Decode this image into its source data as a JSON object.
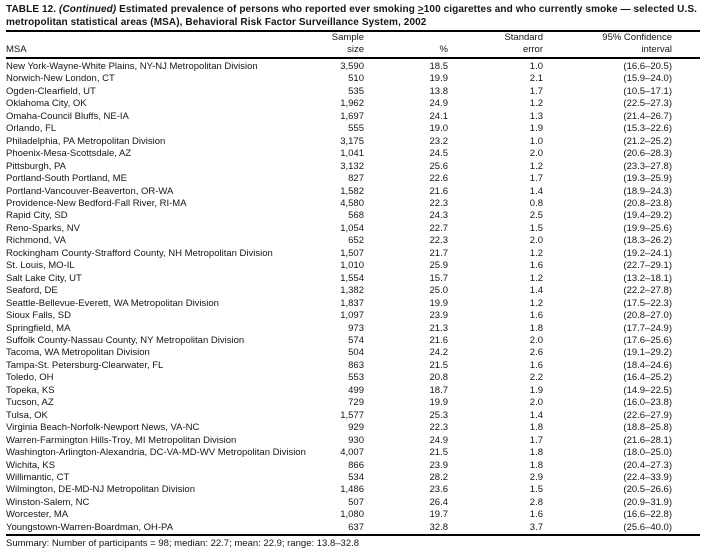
{
  "table": {
    "title": {
      "label": "TABLE 12. ",
      "continued": "(Continued) ",
      "before_geq": "Estimated prevalence of persons who reported ever smoking ",
      "geq": ">",
      "after_geq": "100 cigarettes and who currently smoke — selected U.S. metropolitan statistical areas (MSA), Behavioral Risk Factor Surveillance System, 2002"
    },
    "columns": {
      "msa": "MSA",
      "sample_line1": "Sample",
      "sample_line2": "size",
      "percent": "%",
      "stderr_line1": "Standard",
      "stderr_line2": "error",
      "ci_line1": "95% Confidence",
      "ci_line2": "interval"
    },
    "rows": [
      {
        "msa": "New York-Wayne-White Plains, NY-NJ Metropolitan Division",
        "sample": "3,590",
        "pct": "18.5",
        "se": "1.0",
        "ci": "(16.6–20.5)"
      },
      {
        "msa": "Norwich-New London, CT",
        "sample": "510",
        "pct": "19.9",
        "se": "2.1",
        "ci": "(15.9–24.0)"
      },
      {
        "msa": "Ogden-Clearfield, UT",
        "sample": "535",
        "pct": "13.8",
        "se": "1.7",
        "ci": "(10.5–17.1)"
      },
      {
        "msa": "Oklahoma City, OK",
        "sample": "1,962",
        "pct": "24.9",
        "se": "1.2",
        "ci": "(22.5–27.3)"
      },
      {
        "msa": "Omaha-Council Bluffs, NE-IA",
        "sample": "1,697",
        "pct": "24.1",
        "se": "1.3",
        "ci": "(21.4–26.7)"
      },
      {
        "msa": "Orlando, FL",
        "sample": "555",
        "pct": "19.0",
        "se": "1.9",
        "ci": "(15.3–22.6)"
      },
      {
        "msa": "Philadelphia, PA Metropolitan Division",
        "sample": "3,175",
        "pct": "23.2",
        "se": "1.0",
        "ci": "(21.2–25.2)"
      },
      {
        "msa": "Phoenix-Mesa-Scottsdale, AZ",
        "sample": "1,041",
        "pct": "24.5",
        "se": "2.0",
        "ci": "(20.6–28.3)"
      },
      {
        "msa": "Pittsburgh, PA",
        "sample": "3,132",
        "pct": "25.6",
        "se": "1.2",
        "ci": "(23.3–27.8)"
      },
      {
        "msa": "Portland-South Portland, ME",
        "sample": "827",
        "pct": "22.6",
        "se": "1.7",
        "ci": "(19.3–25.9)"
      },
      {
        "msa": "Portland-Vancouver-Beaverton, OR-WA",
        "sample": "1,582",
        "pct": "21.6",
        "se": "1.4",
        "ci": "(18.9–24.3)"
      },
      {
        "msa": "Providence-New Bedford-Fall River, RI-MA",
        "sample": "4,580",
        "pct": "22.3",
        "se": "0.8",
        "ci": "(20.8–23.8)"
      },
      {
        "msa": "Rapid City, SD",
        "sample": "568",
        "pct": "24.3",
        "se": "2.5",
        "ci": "(19.4–29.2)"
      },
      {
        "msa": "Reno-Sparks, NV",
        "sample": "1,054",
        "pct": "22.7",
        "se": "1.5",
        "ci": "(19.9–25.6)"
      },
      {
        "msa": "Richmond, VA",
        "sample": "652",
        "pct": "22.3",
        "se": "2.0",
        "ci": "(18.3–26.2)"
      },
      {
        "msa": "Rockingham County-Strafford County, NH Metropolitan Division",
        "sample": "1,507",
        "pct": "21.7",
        "se": "1.2",
        "ci": "(19.2–24.1)"
      },
      {
        "msa": "St. Louis, MO-IL",
        "sample": "1,010",
        "pct": "25.9",
        "se": "1.6",
        "ci": "(22.7–29.1)"
      },
      {
        "msa": "Salt Lake City, UT",
        "sample": "1,554",
        "pct": "15.7",
        "se": "1.2",
        "ci": "(13.2–18.1)"
      },
      {
        "msa": "Seaford, DE",
        "sample": "1,382",
        "pct": "25.0",
        "se": "1.4",
        "ci": "(22.2–27.8)"
      },
      {
        "msa": "Seattle-Bellevue-Everett, WA Metropolitan Division",
        "sample": "1,837",
        "pct": "19.9",
        "se": "1.2",
        "ci": "(17.5–22.3)"
      },
      {
        "msa": "Sioux Falls, SD",
        "sample": "1,097",
        "pct": "23.9",
        "se": "1.6",
        "ci": "(20.8–27.0)"
      },
      {
        "msa": "Springfield, MA",
        "sample": "973",
        "pct": "21.3",
        "se": "1.8",
        "ci": "(17.7–24.9)"
      },
      {
        "msa": "Suffolk County-Nassau County, NY Metropolitan Division",
        "sample": "574",
        "pct": "21.6",
        "se": "2.0",
        "ci": "(17.6–25.6)"
      },
      {
        "msa": "Tacoma, WA Metropolitan Division",
        "sample": "504",
        "pct": "24.2",
        "se": "2.6",
        "ci": "(19.1–29.2)"
      },
      {
        "msa": "Tampa-St. Petersburg-Clearwater, FL",
        "sample": "863",
        "pct": "21.5",
        "se": "1.6",
        "ci": "(18.4–24.6)"
      },
      {
        "msa": "Toledo, OH",
        "sample": "553",
        "pct": "20.8",
        "se": "2.2",
        "ci": "(16.4–25.2)"
      },
      {
        "msa": "Topeka, KS",
        "sample": "499",
        "pct": "18.7",
        "se": "1.9",
        "ci": "(14.9–22.5)"
      },
      {
        "msa": "Tucson, AZ",
        "sample": "729",
        "pct": "19.9",
        "se": "2.0",
        "ci": "(16.0–23.8)"
      },
      {
        "msa": "Tulsa, OK",
        "sample": "1,577",
        "pct": "25.3",
        "se": "1.4",
        "ci": "(22.6–27.9)"
      },
      {
        "msa": "Virginia Beach-Norfolk-Newport News, VA-NC",
        "sample": "929",
        "pct": "22.3",
        "se": "1.8",
        "ci": "(18.8–25.8)"
      },
      {
        "msa": "Warren-Farmington Hills-Troy, MI Metropolitan Division",
        "sample": "930",
        "pct": "24.9",
        "se": "1.7",
        "ci": "(21.6–28.1)"
      },
      {
        "msa": "Washington-Arlington-Alexandria, DC-VA-MD-WV Metropolitan Division",
        "sample": "4,007",
        "pct": "21.5",
        "se": "1.8",
        "ci": "(18.0–25.0)"
      },
      {
        "msa": "Wichita, KS",
        "sample": "866",
        "pct": "23.9",
        "se": "1.8",
        "ci": "(20.4–27.3)"
      },
      {
        "msa": "Willimantic, CT",
        "sample": "534",
        "pct": "28.2",
        "se": "2.9",
        "ci": "(22.4–33.9)"
      },
      {
        "msa": "Wilmington, DE-MD-NJ Metropolitan Division",
        "sample": "1,486",
        "pct": "23.6",
        "se": "1.5",
        "ci": "(20.5–26.6)"
      },
      {
        "msa": "Winston-Salem, NC",
        "sample": "507",
        "pct": "26.4",
        "se": "2.8",
        "ci": "(20.9–31.9)"
      },
      {
        "msa": "Worcester, MA",
        "sample": "1,080",
        "pct": "19.7",
        "se": "1.6",
        "ci": "(16.6–22.8)"
      },
      {
        "msa": "Youngstown-Warren-Boardman, OH-PA",
        "sample": "637",
        "pct": "32.8",
        "se": "3.7",
        "ci": "(25.6–40.0)"
      }
    ],
    "summary": "Summary: Number of participants = 98; median: 22.7; mean: 22.9; range: 13.8–32.8"
  }
}
